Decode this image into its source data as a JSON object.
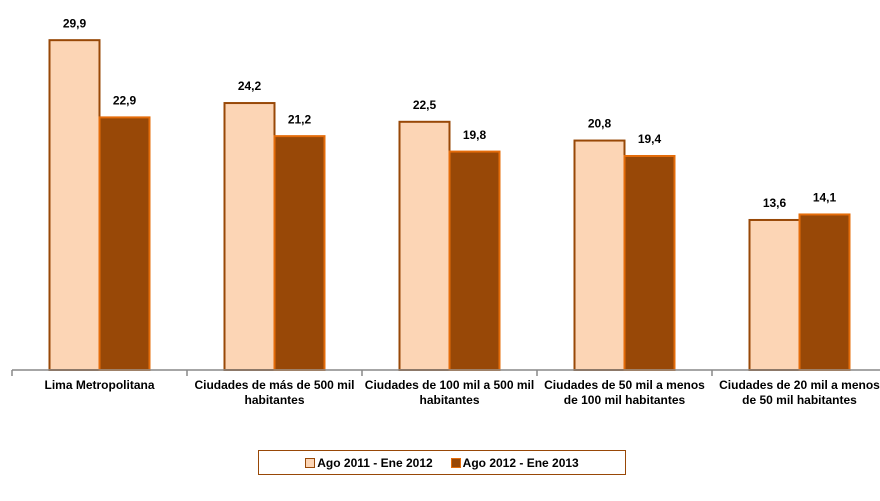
{
  "chart_data": {
    "type": "bar",
    "categories": [
      "Lima Metropolitana",
      "Ciudades de más de 500 mil habitantes",
      "Ciudades de 100 mil a 500 mil habitantes",
      "Ciudades de 50 mil a menos de 100 mil habitantes",
      "Ciudades de 20 mil a menos de 50 mil habitantes"
    ],
    "series": [
      {
        "name": "Ago 2011 - Ene 2012",
        "color": "#fcd5b5",
        "stroke": "#984807",
        "values": [
          29.9,
          24.2,
          22.5,
          20.8,
          13.6
        ],
        "value_labels": [
          "29,9",
          "24,2",
          "22,5",
          "20,8",
          "13,6"
        ]
      },
      {
        "name": "Ago 2012 - Ene 2013",
        "color": "#984807",
        "stroke": "#e46c0a",
        "values": [
          22.9,
          21.2,
          19.8,
          19.4,
          14.1
        ],
        "value_labels": [
          "22,9",
          "21,2",
          "19,8",
          "19,4",
          "14,1"
        ]
      }
    ],
    "ylim": [
      0,
      32
    ],
    "legend": "bottom"
  }
}
